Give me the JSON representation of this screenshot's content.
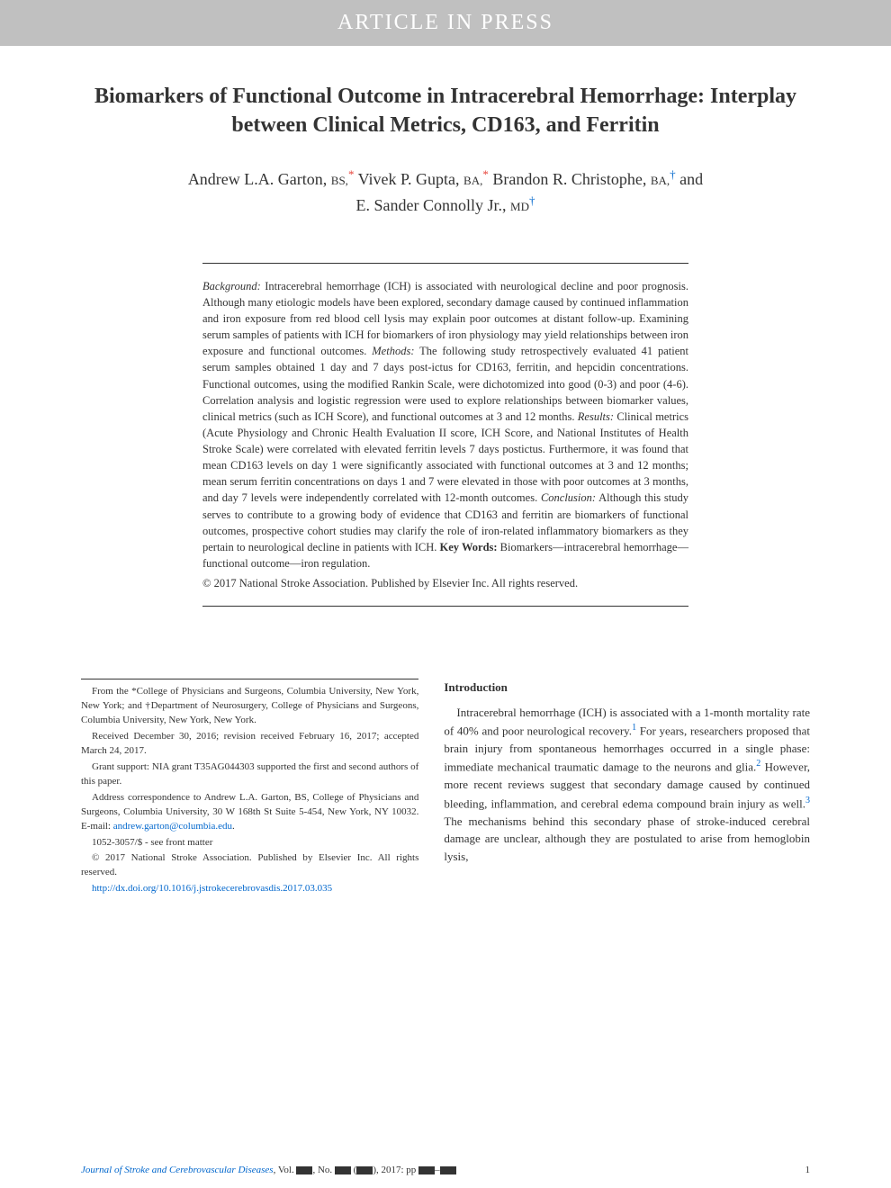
{
  "banner": {
    "text": "ARTICLE IN PRESS"
  },
  "title": "Biomarkers of Functional Outcome in Intracerebral Hemorrhage: Interplay between Clinical Metrics, CD163, and Ferritin",
  "authors": [
    {
      "name": "Andrew L.A. Garton,",
      "degree": "BS,",
      "affil": "a"
    },
    {
      "name": "Vivek P. Gupta,",
      "degree": "BA,",
      "affil": "a"
    },
    {
      "name": "Brandon R. Christophe,",
      "degree": "BA,",
      "affil": "b",
      "suffix": "and"
    },
    {
      "name": "E. Sander Connolly Jr.,",
      "degree": "MD",
      "affil": "b"
    }
  ],
  "abstract": {
    "background_label": "Background:",
    "background": " Intracerebral hemorrhage (ICH) is associated with neurological decline and poor prognosis. Although many etiologic models have been explored, secondary damage caused by continued inflammation and iron exposure from red blood cell lysis may explain poor outcomes at distant follow-up. Examining serum samples of patients with ICH for biomarkers of iron physiology may yield relationships between iron exposure and functional outcomes. ",
    "methods_label": "Methods:",
    "methods": " The following study retrospectively evaluated 41 patient serum samples obtained 1 day and 7 days post-ictus for CD163, ferritin, and hepcidin concentrations. Functional outcomes, using the modified Rankin Scale, were dichotomized into good (0-3) and poor (4-6). Correlation analysis and logistic regression were used to explore relationships between biomarker values, clinical metrics (such as ICH Score), and functional outcomes at 3 and 12 months. ",
    "results_label": "Results:",
    "results": " Clinical metrics (Acute Physiology and Chronic Health Evaluation II score, ICH Score, and National Institutes of Health Stroke Scale) were correlated with elevated ferritin levels 7 days postictus. Furthermore, it was found that mean CD163 levels on day 1 were significantly associated with functional outcomes at 3 and 12 months; mean serum ferritin concentrations on days 1 and 7 were elevated in those with poor outcomes at 3 months, and day 7 levels were independently correlated with 12-month outcomes. ",
    "conclusion_label": "Conclusion:",
    "conclusion": " Although this study serves to contribute to a growing body of evidence that CD163 and ferritin are biomarkers of functional outcomes, prospective cohort studies may clarify the role of iron-related inflammatory biomarkers as they pertain to neurological decline in patients with ICH. ",
    "keywords_label": "Key Words:",
    "keywords": " Biomarkers—intracerebral hemorrhage—functional outcome—iron regulation.",
    "copyright": "© 2017 National Stroke Association. Published by Elsevier Inc. All rights reserved."
  },
  "footnotes": {
    "affiliations": "From the *College of Physicians and Surgeons, Columbia University, New York, New York; and †Department of Neurosurgery, College of Physicians and Surgeons, Columbia University, New York, New York.",
    "received": "Received December 30, 2016; revision received February 16, 2017; accepted March 24, 2017.",
    "grant": "Grant support: NIA grant T35AG044303 supported the first and second authors of this paper.",
    "correspondence": "Address correspondence to Andrew L.A. Garton, BS, College of Physicians and Surgeons, Columbia University, 30 W 168th St Suite 5-454, New York, NY 10032. E-mail: ",
    "email": "andrew.garton@columbia.edu",
    "email_suffix": ".",
    "issn": "1052-3057/$ - see front matter",
    "copyright_footer": "© 2017 National Stroke Association. Published by Elsevier Inc. All rights reserved.",
    "doi": "http://dx.doi.org/10.1016/j.jstrokecerebrovasdis.2017.03.035"
  },
  "introduction": {
    "heading": "Introduction",
    "body_pre": "Intracerebral hemorrhage (ICH) is associated with a 1-month mortality rate of 40% and poor neurological recovery.",
    "ref1": "1",
    "body_mid1": " For years, researchers proposed that brain injury from spontaneous hemorrhages occurred in a single phase: immediate mechanical traumatic damage to the neurons and glia.",
    "ref2": "2",
    "body_mid2": " However, more recent reviews suggest that secondary damage caused by continued bleeding, inflammation, and cerebral edema compound brain injury as well.",
    "ref3": "3",
    "body_post": " The mechanisms behind this secondary phase of stroke-induced cerebral damage are unclear, although they are postulated to arise from hemoglobin lysis,"
  },
  "journal_footer": {
    "name": "Journal of Stroke and Cerebrovascular Diseases",
    "citation": ", Vol. ■■, No. ■■ (■■), 2017: pp ■■–■■",
    "page": "1"
  },
  "colors": {
    "banner_bg": "#c0c0c0",
    "banner_text": "#ffffff",
    "body_text": "#333333",
    "link_blue": "#0066cc",
    "affil_red": "#e7453c"
  }
}
